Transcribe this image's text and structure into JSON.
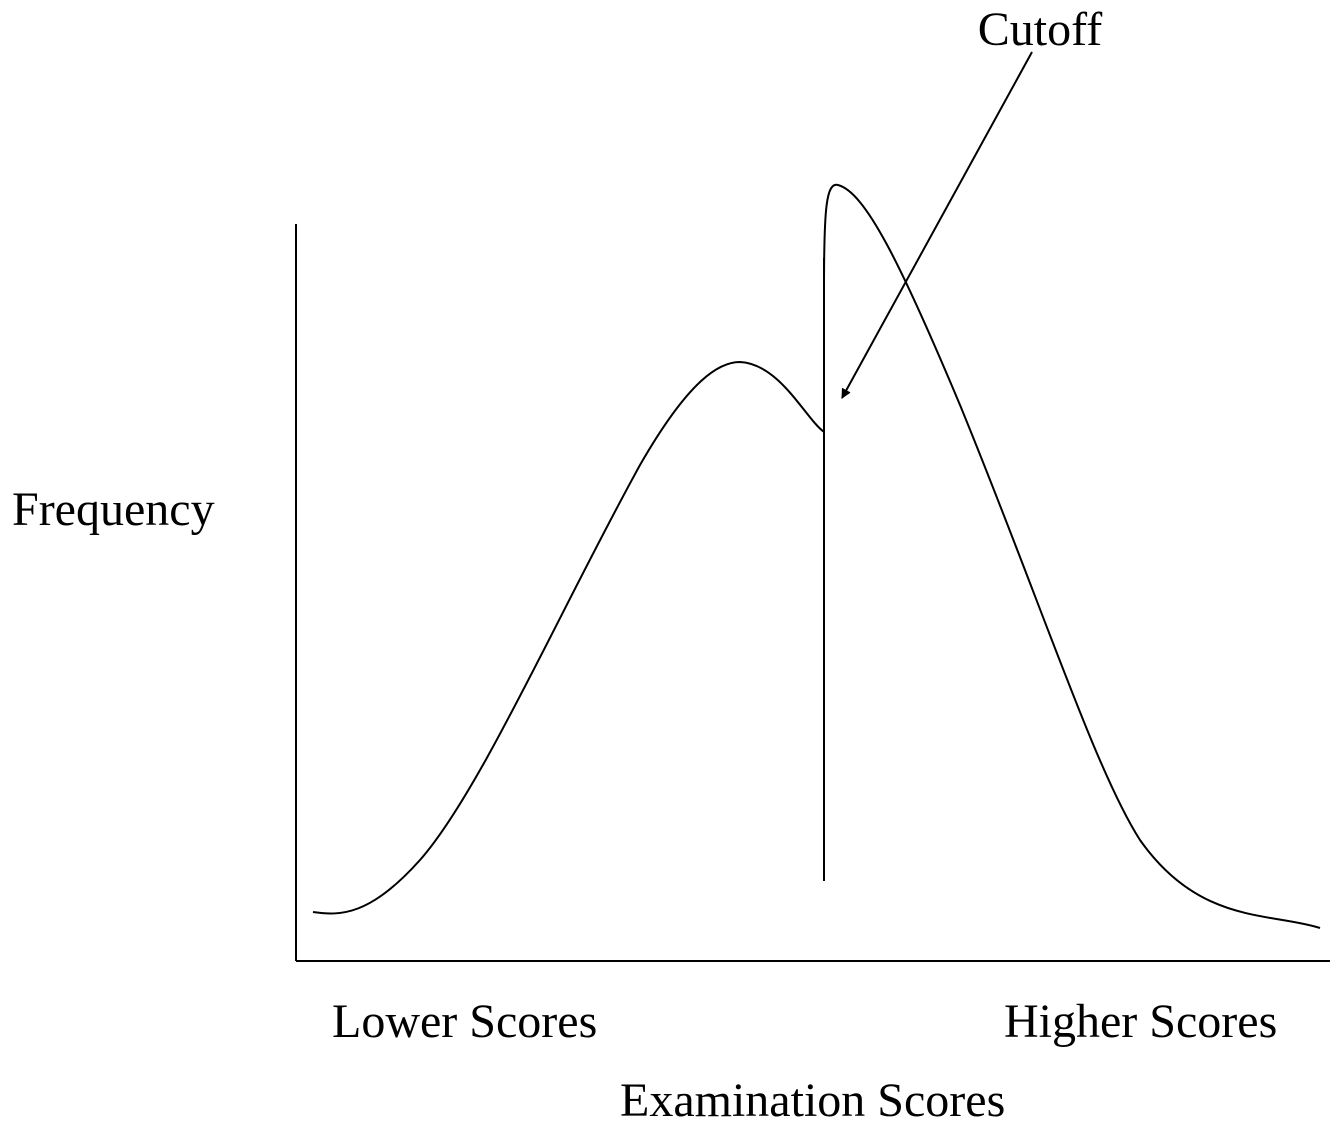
{
  "annotation": "Cutoff",
  "y_axis_label": "Frequency",
  "x_axis_low_label": "Lower Scores",
  "x_axis_high_label": "Higher Scores",
  "x_axis_label": "Examination Scores"
}
